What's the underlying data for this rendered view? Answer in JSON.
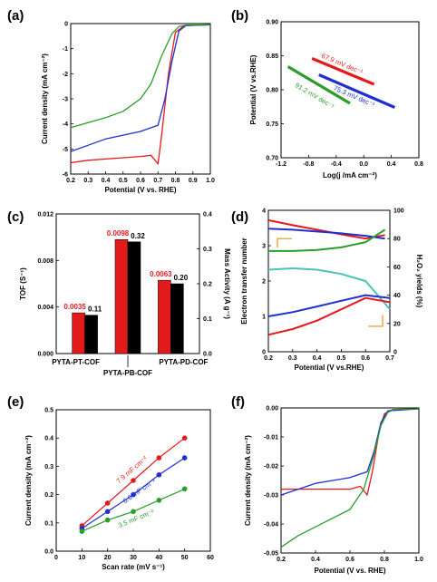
{
  "colors": {
    "red": "#e31a1c",
    "blue": "#1f2fd0",
    "green": "#2a9d2a",
    "black": "#000000",
    "cyan": "#4cc2b8"
  },
  "panels": [
    "(a)",
    "(b)",
    "(c)",
    "(d)",
    "(e)",
    "(f)"
  ],
  "chart_data": [
    {
      "id": "a",
      "type": "line",
      "xlabel": "Potential (V vs. RHE)",
      "ylabel": "Current density (mA cm⁻²)",
      "xlim": [
        0.2,
        1.0
      ],
      "ylim": [
        -6,
        0
      ],
      "xticks": [
        "0.2",
        "0.3",
        "0.4",
        "0.5",
        "0.6",
        "0.7",
        "0.8",
        "0.9",
        "1.0"
      ],
      "yticks": [
        "0",
        "-1",
        "-2",
        "-3",
        "-4",
        "-5",
        "-6"
      ],
      "series": [
        {
          "color": "red",
          "x": [
            0.2,
            0.3,
            0.4,
            0.5,
            0.6,
            0.66,
            0.7,
            0.72,
            0.76,
            0.8,
            0.85,
            1.0
          ],
          "y": [
            -5.55,
            -5.45,
            -5.4,
            -5.35,
            -5.3,
            -5.25,
            -5.6,
            -4.5,
            -2.0,
            -0.35,
            -0.08,
            -0.05
          ]
        },
        {
          "color": "blue",
          "x": [
            0.2,
            0.3,
            0.4,
            0.5,
            0.6,
            0.7,
            0.74,
            0.78,
            0.82,
            0.86,
            1.0
          ],
          "y": [
            -5.1,
            -4.85,
            -4.6,
            -4.45,
            -4.3,
            -4.05,
            -3.0,
            -1.5,
            -0.3,
            -0.08,
            -0.05
          ]
        },
        {
          "color": "green",
          "x": [
            0.2,
            0.3,
            0.4,
            0.5,
            0.6,
            0.66,
            0.72,
            0.78,
            0.82,
            0.86,
            1.0
          ],
          "y": [
            -4.15,
            -3.95,
            -3.75,
            -3.5,
            -3.0,
            -2.4,
            -1.3,
            -0.4,
            -0.12,
            -0.06,
            -0.05
          ]
        }
      ]
    },
    {
      "id": "b",
      "type": "line",
      "xlabel": "Log(j /mA cm⁻²)",
      "ylabel": "Potential (V vs.RHE)",
      "xlim": [
        -1.2,
        0.8
      ],
      "ylim": [
        0.7,
        0.9
      ],
      "xticks": [
        "-1.2",
        "-0.8",
        "-0.4",
        "0.0",
        "0.4",
        "0.8"
      ],
      "yticks": [
        "0.90",
        "0.85",
        "0.80",
        "0.75",
        "0.70"
      ],
      "series": [
        {
          "color": "red",
          "x": [
            -0.75,
            0.15
          ],
          "y": [
            0.846,
            0.808
          ],
          "label": "67.9 mV dec⁻¹"
        },
        {
          "color": "blue",
          "x": [
            -0.65,
            0.45
          ],
          "y": [
            0.822,
            0.774
          ],
          "label": "75.3 mV dec⁻¹"
        },
        {
          "color": "green",
          "x": [
            -1.1,
            -0.2
          ],
          "y": [
            0.834,
            0.78
          ],
          "label": "91.2 mV dec⁻¹"
        }
      ]
    },
    {
      "id": "c",
      "type": "bar",
      "ylabel": "TOF (S⁻¹)",
      "ylabel_right": "Mass Activity (A g⁻¹)",
      "categories": [
        "PYTA-PT-COF",
        "PYTA-PB-COF",
        "PYTA-PD-COF"
      ],
      "yticks": [
        "0.000",
        "0.004",
        "0.008",
        "0.012"
      ],
      "yticks_right": [
        "0.0",
        "0.1",
        "0.2",
        "0.3",
        "0.4"
      ],
      "series": [
        {
          "color": "red",
          "axis": "left",
          "values": [
            0.0035,
            0.0098,
            0.0063
          ],
          "labels": [
            "0.0035",
            "0.0098",
            "0.0063"
          ]
        },
        {
          "color": "black",
          "axis": "right",
          "values": [
            0.11,
            0.32,
            0.2
          ],
          "labels": [
            "0.11",
            "0.32",
            "0.20"
          ]
        }
      ]
    },
    {
      "id": "d",
      "type": "line",
      "xlabel": "Potential (V vs.RHE)",
      "ylabel": "Electron transfer number",
      "ylabel_right": "H₂O₂ yields (%)",
      "xlim": [
        0.2,
        0.7
      ],
      "ylim": [
        0,
        4
      ],
      "ylim_right": [
        0,
        100
      ],
      "xticks": [
        "0.2",
        "0.3",
        "0.4",
        "0.5",
        "0.6",
        "0.7"
      ],
      "yticks": [
        "0",
        "1",
        "2",
        "3",
        "4"
      ],
      "yticks_right": [
        "0",
        "20",
        "40",
        "60",
        "80",
        "100"
      ],
      "series": [
        {
          "color": "red",
          "axis": "left",
          "x": [
            0.2,
            0.3,
            0.4,
            0.5,
            0.6,
            0.68
          ],
          "y": [
            3.72,
            3.58,
            3.45,
            3.32,
            3.2,
            3.3
          ]
        },
        {
          "color": "blue",
          "axis": "left",
          "x": [
            0.2,
            0.3,
            0.4,
            0.5,
            0.6,
            0.68
          ],
          "y": [
            3.48,
            3.45,
            3.4,
            3.35,
            3.28,
            3.2
          ]
        },
        {
          "color": "green",
          "axis": "left",
          "x": [
            0.2,
            0.3,
            0.4,
            0.5,
            0.6,
            0.68
          ],
          "y": [
            2.85,
            2.85,
            2.88,
            2.95,
            3.1,
            3.45
          ]
        },
        {
          "color": "cyan",
          "axis": "right",
          "x": [
            0.2,
            0.3,
            0.4,
            0.5,
            0.6,
            0.7
          ],
          "y": [
            58,
            59,
            58,
            55,
            50,
            30
          ]
        },
        {
          "color": "blue",
          "axis": "right",
          "x": [
            0.2,
            0.3,
            0.4,
            0.5,
            0.6,
            0.7
          ],
          "y": [
            25,
            28,
            32,
            36,
            40,
            38
          ]
        },
        {
          "color": "red",
          "axis": "right",
          "x": [
            0.2,
            0.3,
            0.4,
            0.5,
            0.6,
            0.7
          ],
          "y": [
            12,
            16,
            22,
            30,
            38,
            35
          ]
        }
      ]
    },
    {
      "id": "e",
      "type": "scatter",
      "xlabel": "Scan rate (mV s⁻¹)",
      "ylabel": "Current density (mA cm⁻²)",
      "xlim": [
        0,
        60
      ],
      "ylim": [
        0.0,
        0.5
      ],
      "xticks": [
        "0",
        "10",
        "20",
        "30",
        "40",
        "50",
        "60"
      ],
      "yticks": [
        "0.0",
        "0.1",
        "0.2",
        "0.3",
        "0.4",
        "0.5"
      ],
      "series": [
        {
          "color": "red",
          "x": [
            10,
            20,
            30,
            40,
            50
          ],
          "y": [
            0.09,
            0.17,
            0.25,
            0.33,
            0.4
          ],
          "label": "7.9 mF cm⁻²"
        },
        {
          "color": "blue",
          "x": [
            10,
            20,
            30,
            40,
            50
          ],
          "y": [
            0.08,
            0.14,
            0.2,
            0.27,
            0.33
          ],
          "label": "6.6 mF cm⁻²"
        },
        {
          "color": "green",
          "x": [
            10,
            20,
            30,
            40,
            50
          ],
          "y": [
            0.07,
            0.11,
            0.14,
            0.18,
            0.22
          ],
          "label": "3.5 mF cm⁻²"
        }
      ]
    },
    {
      "id": "f",
      "type": "line",
      "xlabel": "Potential (V vs. RHE)",
      "ylabel": "Current density (mA cm⁻²)",
      "xlim": [
        0.2,
        1.0
      ],
      "ylim": [
        -0.05,
        0.0
      ],
      "xticks": [
        "0.2",
        "0.4",
        "0.6",
        "0.8",
        "1.0"
      ],
      "yticks": [
        "0.00",
        "-0.01",
        "-0.02",
        "-0.03",
        "-0.04",
        "-0.05"
      ],
      "series": [
        {
          "color": "red",
          "x": [
            0.2,
            0.3,
            0.4,
            0.5,
            0.6,
            0.66,
            0.7,
            0.73,
            0.77,
            0.8,
            0.85,
            1.0
          ],
          "y": [
            -0.028,
            -0.028,
            -0.028,
            -0.028,
            -0.028,
            -0.027,
            -0.03,
            -0.022,
            -0.008,
            -0.002,
            -0.0005,
            -0.0003
          ]
        },
        {
          "color": "blue",
          "x": [
            0.2,
            0.3,
            0.4,
            0.5,
            0.6,
            0.7,
            0.74,
            0.78,
            0.82,
            1.0
          ],
          "y": [
            -0.03,
            -0.028,
            -0.026,
            -0.025,
            -0.024,
            -0.022,
            -0.015,
            -0.005,
            -0.001,
            -0.0003
          ]
        },
        {
          "color": "green",
          "x": [
            0.2,
            0.3,
            0.4,
            0.5,
            0.6,
            0.68,
            0.74,
            0.78,
            0.82,
            0.86,
            1.0
          ],
          "y": [
            -0.048,
            -0.044,
            -0.041,
            -0.038,
            -0.035,
            -0.028,
            -0.016,
            -0.006,
            -0.0015,
            -0.0005,
            -0.0003
          ]
        }
      ]
    }
  ]
}
